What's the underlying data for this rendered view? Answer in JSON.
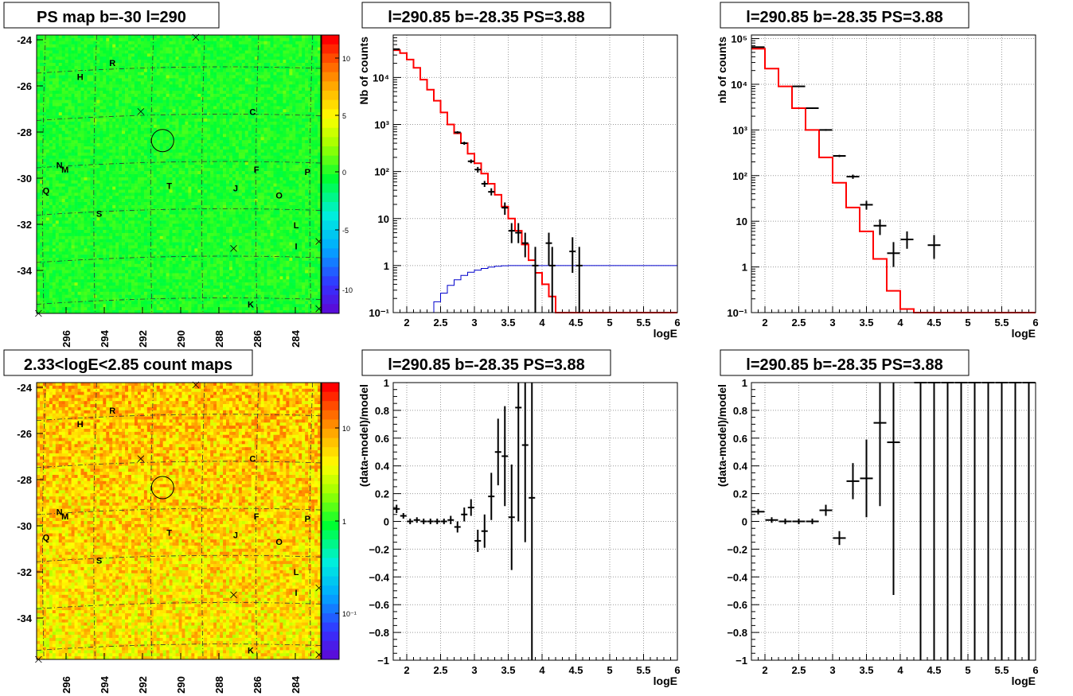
{
  "panels": {
    "map1": {
      "title": "PS map b=-30 l=290",
      "y_ticks": [
        "-24",
        "-26",
        "-28",
        "-30",
        "-32",
        "-34"
      ],
      "x_ticks": [
        "296",
        "294",
        "292",
        "290",
        "288",
        "286",
        "284"
      ],
      "colorbar_ticks": [
        "10",
        "5",
        "0",
        "-5",
        "-10"
      ],
      "labels": [
        "H",
        "R",
        "C",
        "N",
        "M",
        "F",
        "P",
        "Q",
        "T",
        "J",
        "O",
        "S",
        "L",
        "I",
        "K"
      ]
    },
    "map2": {
      "title": "2.33<logE<2.85 count maps",
      "y_ticks": [
        "-24",
        "-26",
        "-28",
        "-30",
        "-32",
        "-34"
      ],
      "x_ticks": [
        "296",
        "294",
        "292",
        "290",
        "288",
        "286",
        "284"
      ],
      "colorbar_ticks": [
        "10",
        "1",
        "10⁻¹"
      ],
      "labels": [
        "H",
        "R",
        "C",
        "N",
        "M",
        "F",
        "P",
        "Q",
        "T",
        "J",
        "O",
        "S",
        "L",
        "I",
        "K"
      ]
    },
    "spec1": {
      "title": "l=290.85 b=-28.35 PS=3.88",
      "ylabel": "Nb of counts",
      "xlabel": "logE"
    },
    "spec2": {
      "title": "l=290.85 b=-28.35 PS=3.88",
      "ylabel": "nb of counts",
      "xlabel": "logE"
    },
    "res1": {
      "title": "l=290.85 b=-28.35 PS=3.88",
      "ylabel": "(data-model)/model",
      "xlabel": "logE"
    },
    "res2": {
      "title": "l=290.85 b=-28.35 PS=3.88",
      "ylabel": "(data-model)/model",
      "xlabel": "logE"
    }
  },
  "chart_data": [
    {
      "type": "heatmap",
      "title": "PS map b=-30 l=290",
      "xlim": [
        297.5,
        282.5
      ],
      "ylim": [
        -35.8,
        -23.8
      ],
      "colorbar_range": [
        -12,
        12
      ],
      "colormap": "rainbow",
      "markers": [
        {
          "label": "H",
          "l": 295.2,
          "b": -25.6
        },
        {
          "label": "R",
          "l": 293.5,
          "b": -25.0
        },
        {
          "label": "C",
          "l": 286.1,
          "b": -27.1
        },
        {
          "label": "N",
          "l": 296.3,
          "b": -29.4
        },
        {
          "label": "M",
          "l": 296.0,
          "b": -29.6
        },
        {
          "label": "F",
          "l": 285.9,
          "b": -29.6
        },
        {
          "label": "P",
          "l": 283.2,
          "b": -29.7
        },
        {
          "label": "Q",
          "l": 297.0,
          "b": -30.5
        },
        {
          "label": "T",
          "l": 290.5,
          "b": -30.3
        },
        {
          "label": "J",
          "l": 287.0,
          "b": -30.4
        },
        {
          "label": "O",
          "l": 284.7,
          "b": -30.7
        },
        {
          "label": "S",
          "l": 294.2,
          "b": -31.5
        },
        {
          "label": "L",
          "l": 283.8,
          "b": -32.0
        },
        {
          "label": "I",
          "l": 283.8,
          "b": -32.9
        },
        {
          "label": "K",
          "l": 286.2,
          "b": -35.4
        }
      ],
      "source_circle": {
        "l": 290.85,
        "b": -28.35
      }
    },
    {
      "type": "heatmap",
      "title": "2.33<logE<2.85 count maps",
      "xlim": [
        297.5,
        282.5
      ],
      "ylim": [
        -35.8,
        -23.8
      ],
      "colorbar_scale": "log",
      "colorbar_range": [
        0.03,
        40
      ]
    },
    {
      "type": "line",
      "title": "l=290.85 b=-28.35 PS=3.88",
      "xlabel": "logE",
      "ylabel": "Nb of counts",
      "yscale": "log",
      "xlim": [
        1.8,
        6
      ],
      "ylim": [
        0.1,
        80000
      ],
      "grid": true,
      "series": [
        {
          "values": [
            [
              1.8,
              38000
            ],
            [
              1.9,
              33000
            ],
            [
              2.0,
              24000
            ],
            [
              2.1,
              16000
            ],
            [
              2.2,
              9000
            ],
            [
              2.3,
              5500
            ],
            [
              2.4,
              3200
            ],
            [
              2.5,
              1800
            ],
            [
              2.6,
              1000
            ],
            [
              2.7,
              650
            ],
            [
              2.8,
              400
            ],
            [
              2.9,
              240
            ],
            [
              3.0,
              150
            ],
            [
              3.1,
              90
            ],
            [
              3.2,
              55
            ],
            [
              3.3,
              32
            ],
            [
              3.4,
              18
            ],
            [
              3.5,
              10
            ],
            [
              3.6,
              5.5
            ],
            [
              3.7,
              2.8
            ],
            [
              3.8,
              1.3
            ],
            [
              3.9,
              0.7
            ],
            [
              4.0,
              0.4
            ],
            [
              4.1,
              0.22
            ],
            [
              4.2,
              0.1
            ],
            [
              6.0,
              0.1
            ]
          ]
        },
        {
          "values": [
            [
              1.8,
              0.01
            ],
            [
              2.3,
              0.1
            ],
            [
              2.4,
              0.17
            ],
            [
              2.5,
              0.26
            ],
            [
              2.6,
              0.38
            ],
            [
              2.7,
              0.5
            ],
            [
              2.8,
              0.62
            ],
            [
              2.9,
              0.72
            ],
            [
              3.0,
              0.8
            ],
            [
              3.1,
              0.87
            ],
            [
              3.2,
              0.93
            ],
            [
              3.3,
              0.97
            ],
            [
              3.4,
              0.99
            ],
            [
              3.5,
              1.0
            ],
            [
              6.0,
              1.0
            ]
          ]
        }
      ],
      "data_points": [
        {
          "x": 1.85,
          "y": 40000,
          "ylo": 39000,
          "yhi": 41000
        },
        {
          "x": 2.75,
          "y": 680,
          "ylo": 640,
          "yhi": 720
        },
        {
          "x": 2.85,
          "y": 400,
          "ylo": 370,
          "yhi": 430
        },
        {
          "x": 2.95,
          "y": 165,
          "ylo": 150,
          "yhi": 180
        },
        {
          "x": 3.05,
          "y": 110,
          "ylo": 95,
          "yhi": 125
        },
        {
          "x": 3.15,
          "y": 55,
          "ylo": 47,
          "yhi": 63
        },
        {
          "x": 3.25,
          "y": 37,
          "ylo": 31,
          "yhi": 44
        },
        {
          "x": 3.45,
          "y": 17,
          "ylo": 12,
          "yhi": 22
        },
        {
          "x": 3.55,
          "y": 5.5,
          "ylo": 3,
          "yhi": 8
        },
        {
          "x": 3.65,
          "y": 5,
          "ylo": 3,
          "yhi": 8
        },
        {
          "x": 3.75,
          "y": 3,
          "ylo": 1.5,
          "yhi": 5
        },
        {
          "x": 3.9,
          "y": 1,
          "ylo": 0.1,
          "yhi": 2.5
        },
        {
          "x": 4.1,
          "y": 3,
          "ylo": 1,
          "yhi": 5
        },
        {
          "x": 4.15,
          "y": 1,
          "ylo": 0.1,
          "yhi": 2.5
        },
        {
          "x": 4.45,
          "y": 2,
          "ylo": 0.7,
          "yhi": 4
        },
        {
          "x": 4.55,
          "y": 1,
          "ylo": 0.1,
          "yhi": 2.5
        }
      ]
    },
    {
      "type": "line",
      "title": "l=290.85 b=-28.35 PS=3.88",
      "xlabel": "logE",
      "ylabel": "nb of counts",
      "yscale": "log",
      "xlim": [
        1.8,
        6
      ],
      "ylim": [
        0.1,
        100000
      ],
      "grid": true,
      "series": [
        {
          "values": [
            [
              1.8,
              60000
            ],
            [
              2.0,
              60000
            ],
            [
              2.0,
              22000
            ],
            [
              2.2,
              22000
            ],
            [
              2.2,
              9000
            ],
            [
              2.4,
              9000
            ],
            [
              2.4,
              3000
            ],
            [
              2.6,
              3000
            ],
            [
              2.6,
              1000
            ],
            [
              2.8,
              1000
            ],
            [
              2.8,
              250
            ],
            [
              3.0,
              250
            ],
            [
              3.0,
              70
            ],
            [
              3.2,
              70
            ],
            [
              3.2,
              20
            ],
            [
              3.4,
              20
            ],
            [
              3.4,
              6
            ],
            [
              3.6,
              6
            ],
            [
              3.6,
              1.5
            ],
            [
              3.8,
              1.5
            ],
            [
              3.8,
              0.3
            ],
            [
              4.0,
              0.3
            ],
            [
              4.0,
              0.12
            ],
            [
              4.2,
              0.12
            ],
            [
              4.2,
              0.1
            ],
            [
              6.0,
              0.1
            ]
          ]
        }
      ],
      "data_points": [
        {
          "x": 1.9,
          "y": 65000,
          "ylo": 64000,
          "yhi": 66000
        },
        {
          "x": 2.5,
          "y": 9000,
          "ylo": 8800,
          "yhi": 9200
        },
        {
          "x": 2.7,
          "y": 3000,
          "ylo": 2900,
          "yhi": 3100
        },
        {
          "x": 2.9,
          "y": 1000,
          "ylo": 960,
          "yhi": 1040
        },
        {
          "x": 3.1,
          "y": 270,
          "ylo": 255,
          "yhi": 285
        },
        {
          "x": 3.3,
          "y": 95,
          "ylo": 85,
          "yhi": 105
        },
        {
          "x": 3.5,
          "y": 23,
          "ylo": 18,
          "yhi": 28
        },
        {
          "x": 3.7,
          "y": 8,
          "ylo": 5,
          "yhi": 11
        },
        {
          "x": 3.9,
          "y": 2,
          "ylo": 1,
          "yhi": 3.5
        },
        {
          "x": 4.1,
          "y": 4,
          "ylo": 2.5,
          "yhi": 6
        },
        {
          "x": 4.5,
          "y": 3,
          "ylo": 1.5,
          "yhi": 5
        }
      ]
    },
    {
      "type": "scatter",
      "title": "l=290.85 b=-28.35 PS=3.88",
      "xlabel": "logE",
      "ylabel": "(data-model)/model",
      "xlim": [
        1.8,
        6
      ],
      "ylim": [
        -1,
        1
      ],
      "grid": true,
      "data_points": [
        {
          "x": 1.85,
          "y": 0.09,
          "err": 0.03
        },
        {
          "x": 1.95,
          "y": 0.04,
          "err": 0.02
        },
        {
          "x": 2.05,
          "y": 0.0,
          "err": 0.02
        },
        {
          "x": 2.15,
          "y": 0.01,
          "err": 0.02
        },
        {
          "x": 2.25,
          "y": 0.0,
          "err": 0.02
        },
        {
          "x": 2.35,
          "y": 0.0,
          "err": 0.02
        },
        {
          "x": 2.45,
          "y": 0.0,
          "err": 0.02
        },
        {
          "x": 2.55,
          "y": 0.0,
          "err": 0.02
        },
        {
          "x": 2.65,
          "y": 0.01,
          "err": 0.03
        },
        {
          "x": 2.75,
          "y": -0.04,
          "err": 0.04
        },
        {
          "x": 2.85,
          "y": 0.05,
          "err": 0.05
        },
        {
          "x": 2.95,
          "y": 0.1,
          "err": 0.06
        },
        {
          "x": 3.05,
          "y": -0.14,
          "err": 0.08
        },
        {
          "x": 3.15,
          "y": -0.07,
          "err": 0.12
        },
        {
          "x": 3.25,
          "y": 0.18,
          "err": 0.17
        },
        {
          "x": 3.35,
          "y": 0.5,
          "err": 0.24
        },
        {
          "x": 3.45,
          "y": 0.47,
          "err": 0.36
        },
        {
          "x": 3.55,
          "y": 0.03,
          "err": 0.38
        },
        {
          "x": 3.65,
          "y": 0.82,
          "err": 0.82
        },
        {
          "x": 3.75,
          "y": 0.55,
          "err": 0.7
        },
        {
          "x": 3.85,
          "y": 0.17,
          "err": 1.2
        }
      ]
    },
    {
      "type": "scatter",
      "title": "l=290.85 b=-28.35 PS=3.88",
      "xlabel": "logE",
      "ylabel": "(data-model)/model",
      "xlim": [
        1.8,
        6
      ],
      "ylim": [
        -1,
        1
      ],
      "grid": true,
      "data_points": [
        {
          "x": 1.9,
          "y": 0.07,
          "err": 0.02
        },
        {
          "x": 2.1,
          "y": 0.01,
          "err": 0.02
        },
        {
          "x": 2.3,
          "y": 0.0,
          "err": 0.02
        },
        {
          "x": 2.5,
          "y": 0.0,
          "err": 0.02
        },
        {
          "x": 2.7,
          "y": 0.0,
          "err": 0.02
        },
        {
          "x": 2.9,
          "y": 0.08,
          "err": 0.04
        },
        {
          "x": 3.1,
          "y": -0.12,
          "err": 0.05
        },
        {
          "x": 3.3,
          "y": 0.29,
          "err": 0.13
        },
        {
          "x": 3.5,
          "y": 0.31,
          "err": 0.28
        },
        {
          "x": 3.7,
          "y": 0.71,
          "err": 0.6
        },
        {
          "x": 3.9,
          "y": 0.57,
          "err": 1.1
        },
        {
          "x": 4.3,
          "y": 1.0,
          "err": 2
        },
        {
          "x": 4.5,
          "y": 1.0,
          "err": 2
        },
        {
          "x": 4.7,
          "y": 1.0,
          "err": 2
        },
        {
          "x": 4.9,
          "y": 1.0,
          "err": 2
        },
        {
          "x": 5.1,
          "y": 1.0,
          "err": 2
        },
        {
          "x": 5.3,
          "y": 1.0,
          "err": 2
        },
        {
          "x": 5.5,
          "y": 1.0,
          "err": 2
        },
        {
          "x": 5.7,
          "y": 1.0,
          "err": 2
        },
        {
          "x": 5.9,
          "y": 1.0,
          "err": 2
        }
      ]
    }
  ],
  "tick_labels": {
    "logE": [
      "2",
      "2.5",
      "3",
      "3.5",
      "4",
      "4.5",
      "5",
      "5.5",
      "6"
    ],
    "log_spec1": [
      "10⁻¹",
      "1",
      "10",
      "10²",
      "10³",
      "10⁴"
    ],
    "log_spec2": [
      "10⁻¹",
      "1",
      "10",
      "10²",
      "10³",
      "10⁴",
      "10⁵"
    ],
    "residual": [
      "1",
      "0.8",
      "0.6",
      "0.4",
      "0.2",
      "0",
      "−0.2",
      "−0.4",
      "−0.6",
      "−0.8",
      "−1"
    ]
  },
  "colors": {
    "model_red": "#ff0000",
    "model_blue": "#0000cc",
    "data_black": "#000000",
    "grid": "#9a9a9a"
  }
}
